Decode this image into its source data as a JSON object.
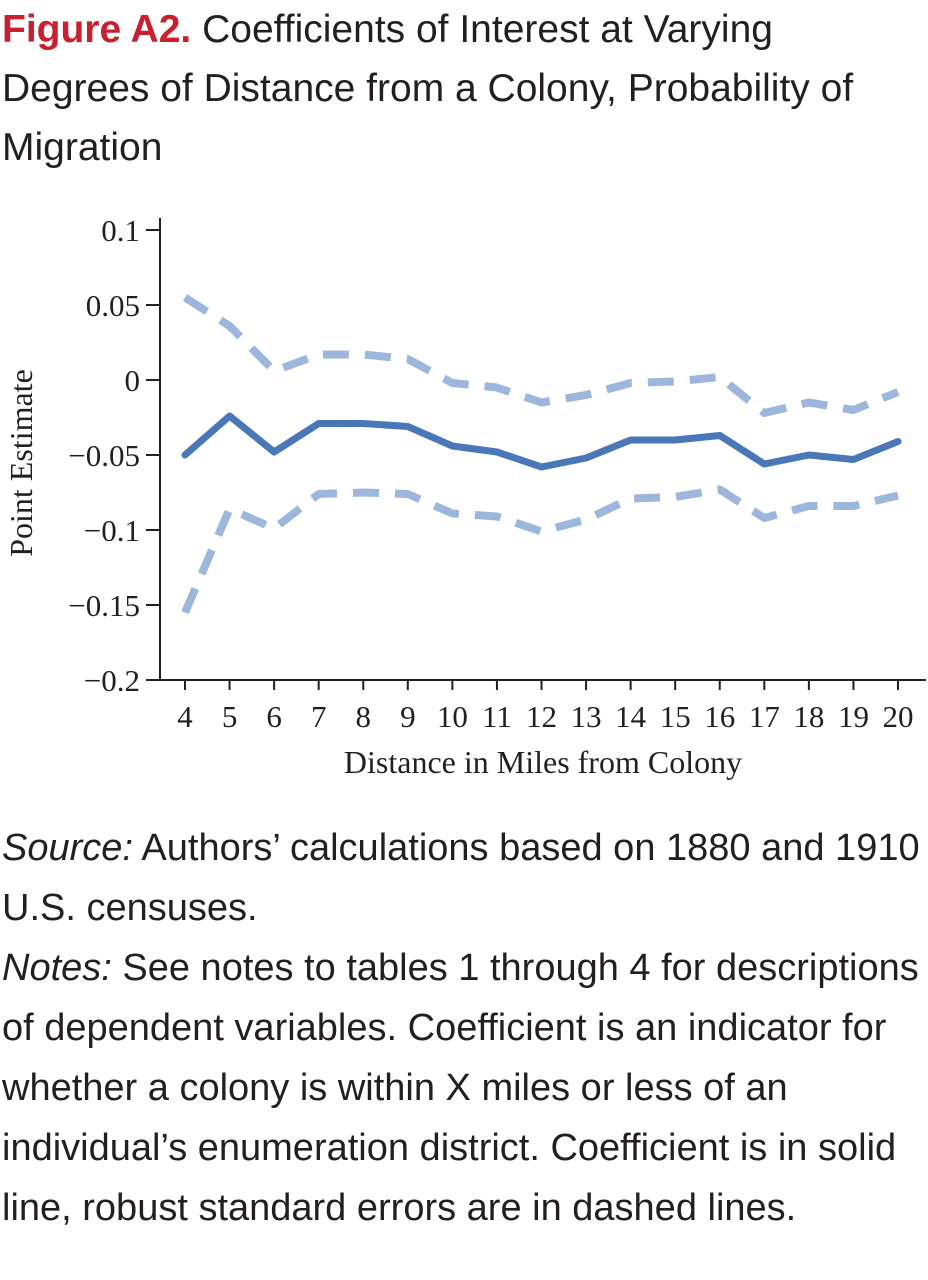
{
  "figure": {
    "label": "Figure A2.",
    "title": "Coefficients of Interest at Varying Degrees of Distance from a Colony, Probability of Migration"
  },
  "chart_data": {
    "type": "line",
    "xlabel": "Distance in Miles from Colony",
    "ylabel": "Point Estimate",
    "x": [
      4,
      5,
      6,
      7,
      8,
      9,
      10,
      11,
      12,
      13,
      14,
      15,
      16,
      17,
      18,
      19,
      20
    ],
    "ylim": [
      -0.2,
      0.1
    ],
    "yticks": [
      0.1,
      0.05,
      0,
      -0.05,
      -0.1,
      -0.15,
      -0.2
    ],
    "ytick_labels": [
      "0.1",
      "0.05",
      "0",
      "−0.05",
      "−0.1",
      "−0.15",
      "−0.2"
    ],
    "grid": false,
    "series": [
      {
        "style": "solid",
        "color": "#4a77b8",
        "values": [
          -0.05,
          -0.024,
          -0.048,
          -0.029,
          -0.029,
          -0.031,
          -0.044,
          -0.048,
          -0.058,
          -0.052,
          -0.04,
          -0.04,
          -0.037,
          -0.056,
          -0.05,
          -0.053,
          -0.041
        ]
      },
      {
        "style": "dashed",
        "color": "#9db7dc",
        "values": [
          0.055,
          0.036,
          0.006,
          0.017,
          0.017,
          0.014,
          -0.002,
          -0.005,
          -0.015,
          -0.01,
          -0.002,
          -0.001,
          0.002,
          -0.022,
          -0.015,
          -0.02,
          -0.008
        ]
      },
      {
        "style": "dashed",
        "color": "#9db7dc",
        "values": [
          -0.155,
          -0.086,
          -0.099,
          -0.076,
          -0.075,
          -0.076,
          -0.089,
          -0.091,
          -0.101,
          -0.093,
          -0.079,
          -0.078,
          -0.073,
          -0.092,
          -0.084,
          -0.084,
          -0.077
        ]
      }
    ]
  },
  "notes": {
    "source_label": "Source:",
    "source_text": " Authors’ calculations based on 1880 and 1910 U.S. censuses.",
    "notes_label": "Notes:",
    "notes_text": " See notes to tables 1 through 4 for descriptions of dependent variables. Coefficient is an indicator for whether a colony is within X miles or less of an individual’s enumeration district. Coefficient is in solid line, robust standard errors are in dashed lines."
  }
}
